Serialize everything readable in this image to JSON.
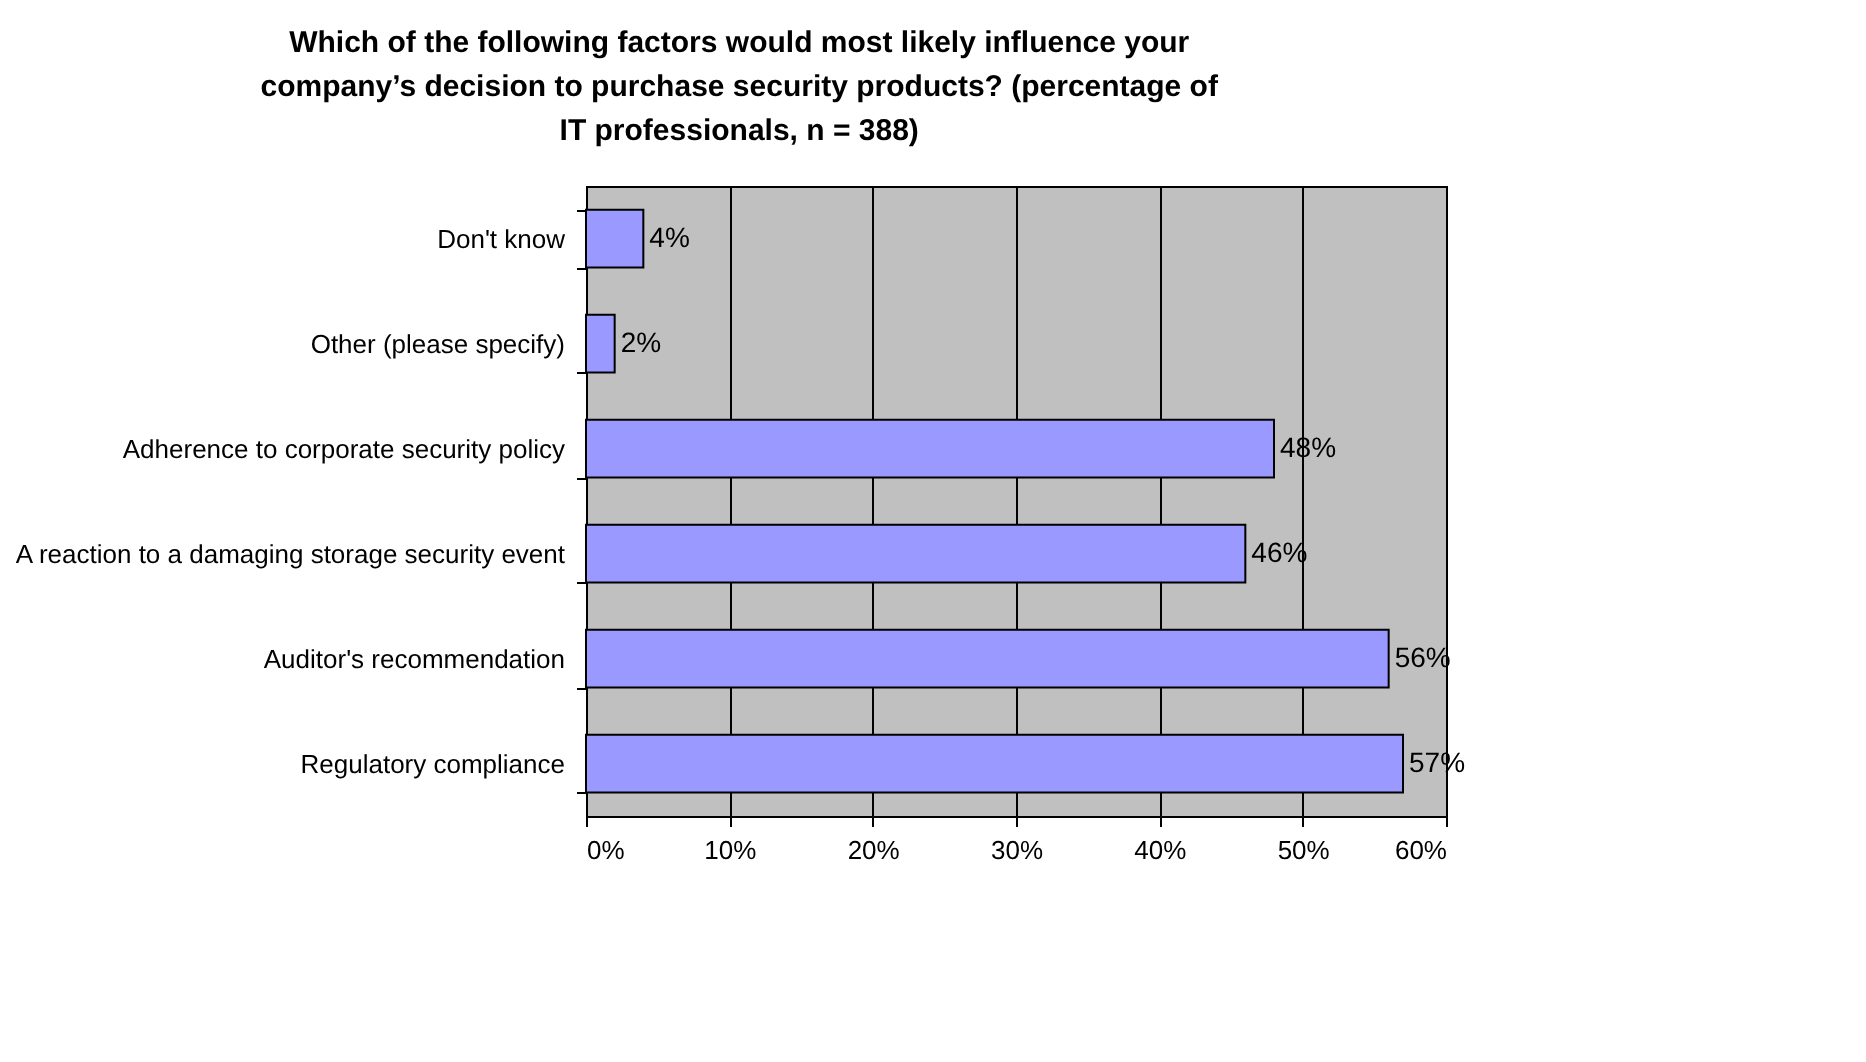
{
  "chart_data": {
    "type": "bar",
    "orientation": "horizontal",
    "title": "Which of the following factors would most likely influence your company’s decision to purchase security products? (percentage of IT professionals, n = 388)",
    "categories": [
      "Don't know",
      "Other (please specify)",
      "Adherence to corporate security policy",
      "A reaction to a damaging storage security event",
      "Auditor's recommendation",
      "Regulatory compliance"
    ],
    "values": [
      4,
      2,
      48,
      46,
      56,
      57
    ],
    "value_labels": [
      "4%",
      "2%",
      "48%",
      "46%",
      "56%",
      "57%"
    ],
    "color": "#9999ff",
    "xlim": [
      0,
      60
    ],
    "xticks": [
      {
        "value": 0,
        "label": "0%"
      },
      {
        "value": 10,
        "label": "10%"
      },
      {
        "value": 20,
        "label": "20%"
      },
      {
        "value": 30,
        "label": "30%"
      },
      {
        "value": 40,
        "label": "40%"
      },
      {
        "value": 50,
        "label": "50%"
      },
      {
        "value": 60,
        "label": "60%"
      }
    ],
    "grid": "x"
  }
}
